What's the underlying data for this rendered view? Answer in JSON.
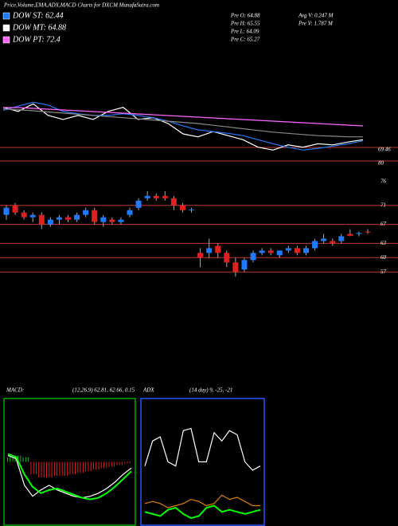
{
  "header": {
    "title": "Price,Volume,EMA,ADX,MACD Charts for DXCM MunafaSutra.com"
  },
  "legend": [
    {
      "label": "DOW ST: 62.44",
      "color": "#1e7bff"
    },
    {
      "label": "DOW MT: 64.88",
      "color": "#ffffff"
    },
    {
      "label": "DOW PT: 72.4",
      "color": "#ff66ff"
    }
  ],
  "info": {
    "left": [
      "Pre O: 64.88",
      "Pre H: 65.55",
      "Pre L: 64.09",
      "Pre C: 65.27"
    ],
    "right": [
      "Avg V: 0.247 M",
      "Pre V: 1.787 M"
    ]
  },
  "chart_data": [
    {
      "type": "line",
      "ylim": [
        60,
        80
      ],
      "right_labels": [
        "69.46",
        "80"
      ],
      "line_color": "#c0392b",
      "series": [
        {
          "color": "#ffffff",
          "values": [
            69.7,
            69.0,
            70.3,
            68.3,
            67.6,
            68.3,
            67.6,
            69.0,
            69.7,
            67.6,
            67.9,
            66.9,
            65.1,
            64.6,
            65.5,
            64.8,
            64.1,
            62.8,
            62.3,
            63.2,
            62.8,
            63.4,
            63.2,
            63.7,
            64.1
          ]
        },
        {
          "color": "#1e7bff",
          "values": [
            69.2,
            69.9,
            70.6,
            70.1,
            69.0,
            68.6,
            68.3,
            68.3,
            68.6,
            68.3,
            67.9,
            67.3,
            66.5,
            65.8,
            65.5,
            65.2,
            64.8,
            64.1,
            63.4,
            62.8,
            62.3,
            62.6,
            63.0,
            63.4,
            63.9
          ]
        },
        {
          "color": "#888888",
          "values": [
            69.4,
            69.3,
            69.1,
            68.9,
            68.7,
            68.5,
            68.3,
            68.1,
            67.9,
            67.7,
            67.5,
            67.3,
            67.1,
            66.9,
            66.6,
            66.3,
            66.0,
            65.7,
            65.4,
            65.2,
            65.0,
            64.8,
            64.7,
            64.6,
            64.6
          ]
        },
        {
          "color": "#ff66ff",
          "values": [
            69.66,
            69.66,
            69.52,
            69.38,
            69.24,
            69.1,
            68.97,
            68.83,
            68.69,
            68.55,
            68.41,
            68.28,
            68.14,
            68.0,
            67.86,
            67.72,
            67.59,
            67.45,
            67.31,
            67.17,
            67.03,
            66.9,
            66.76,
            66.62,
            66.48
          ]
        }
      ]
    },
    {
      "type": "candlestick",
      "ylim": [
        52,
        78
      ],
      "yticks": [
        76,
        71,
        67,
        63,
        60,
        57
      ],
      "up_color": "#1e7bff",
      "down_color": "#e02020",
      "line_color": "#c0392b",
      "open": [
        69,
        71,
        69.5,
        68.5,
        69,
        67,
        68,
        68.5,
        68,
        69,
        70,
        67.5,
        68,
        67.5,
        69,
        70.5,
        72.5,
        73,
        73,
        72.5,
        71,
        70,
        61,
        61,
        62.5,
        61,
        59,
        57.5,
        59.5,
        61,
        61.5,
        60.5,
        61.5,
        62,
        61,
        62,
        63.5,
        63.5,
        63.5,
        65,
        65,
        65.5
      ],
      "high": [
        71,
        71.5,
        70,
        69.5,
        69.5,
        68.5,
        69,
        69,
        69.5,
        70.5,
        70.5,
        69,
        68.5,
        68.5,
        70.5,
        72.5,
        74,
        73.5,
        74,
        73,
        71.5,
        70.5,
        62,
        64,
        63,
        61.5,
        60,
        60,
        61.5,
        62,
        62,
        61.5,
        62.5,
        62.5,
        62.5,
        64,
        65,
        64,
        65,
        66,
        65.5,
        66
      ],
      "low": [
        68,
        69,
        68,
        67.5,
        66,
        66.5,
        67,
        67.5,
        67.5,
        68.5,
        67,
        66.5,
        67,
        67,
        68.5,
        70,
        72,
        72,
        72,
        70,
        69.5,
        69.5,
        58,
        60,
        60,
        58,
        56,
        57,
        59,
        60.5,
        60.5,
        60,
        61,
        60.5,
        60.5,
        61.5,
        63,
        62.5,
        63,
        64.5,
        64.5,
        65
      ],
      "close": [
        70.5,
        69.5,
        68.5,
        69,
        67,
        68,
        68.5,
        68,
        69,
        70,
        67.5,
        68.5,
        67.5,
        68,
        70,
        72,
        73,
        72.5,
        72.5,
        71,
        70,
        70.1,
        60,
        62,
        61,
        59,
        57,
        59.5,
        61,
        61.5,
        61,
        61.5,
        62,
        61,
        62,
        63.5,
        64,
        63,
        64.5,
        64.6,
        65.2,
        65.3
      ]
    },
    {
      "type": "macd",
      "title": "MACD:",
      "subtitle": "(12,26,9) 62.81, 62.66, 0.15",
      "ylim": [
        -4,
        4
      ],
      "border": "#00aa00",
      "bar_up": "#00cc00",
      "bar_down": "#e02020",
      "histogram": [
        0.3,
        0.4,
        0.3,
        -0.8,
        -1.0,
        -1.0,
        -0.9,
        -0.9,
        -0.8,
        -0.7,
        -0.6,
        -0.5,
        -0.4,
        -0.3,
        -0.2,
        -0.1
      ],
      "series": [
        {
          "color": "#ffffff",
          "values": [
            0.4,
            0.2,
            -1.5,
            -2.2,
            -1.8,
            -1.5,
            -1.8,
            -2.0,
            -2.2,
            -2.3,
            -2.2,
            -2.0,
            -1.7,
            -1.3,
            -0.8,
            -0.4
          ]
        },
        {
          "color": "#00ff00",
          "values": [
            0.5,
            0.3,
            -0.8,
            -1.6,
            -2.0,
            -1.8,
            -1.7,
            -1.9,
            -2.1,
            -2.3,
            -2.4,
            -2.3,
            -2.0,
            -1.6,
            -1.1,
            -0.6
          ]
        }
      ]
    },
    {
      "type": "line",
      "title": "ADX",
      "subtitle": "(14 day) 9, -25, -21",
      "ylim": [
        0,
        60
      ],
      "border": "#2255ff",
      "series": [
        {
          "color": "#ffffff",
          "values": [
            28,
            40,
            42,
            30,
            28,
            45,
            46,
            30,
            30,
            44,
            40,
            45,
            43,
            30,
            26,
            28
          ]
        },
        {
          "color": "#e08000",
          "values": [
            10,
            11,
            10,
            8,
            9,
            10,
            12,
            11,
            9,
            10,
            14,
            12,
            13,
            11,
            9,
            9
          ]
        },
        {
          "color": "#00ff00",
          "values": [
            6,
            5,
            4,
            7,
            8,
            5,
            3,
            4,
            8,
            9,
            6,
            7,
            6,
            5,
            6,
            7
          ]
        }
      ]
    }
  ]
}
